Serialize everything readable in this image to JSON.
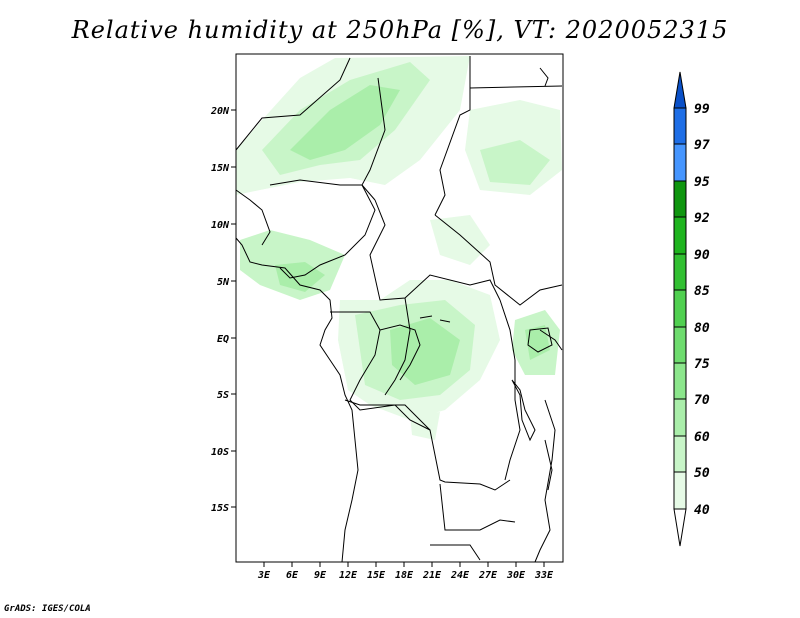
{
  "title": "Relative humidity at 250hPa [%], VT: 2020052315",
  "credit": "GrADS: IGES/COLA",
  "map": {
    "lat_labels": [
      "20N",
      "15N",
      "10N",
      "5N",
      "EQ",
      "5S",
      "10S",
      "15S"
    ],
    "lon_labels": [
      "3E",
      "6E",
      "9E",
      "12E",
      "15E",
      "18E",
      "21E",
      "24E",
      "27E",
      "30E",
      "33E"
    ]
  },
  "colorbar": {
    "labels": [
      "40",
      "50",
      "60",
      "70",
      "75",
      "80",
      "85",
      "90",
      "92",
      "95",
      "97",
      "99"
    ],
    "colors": [
      "#ffffff",
      "#e6fae6",
      "#c8f5c8",
      "#aaeeaa",
      "#8ce68c",
      "#6edc6e",
      "#50d050",
      "#32c032",
      "#1eb41e",
      "#0f960f",
      "#4696ff",
      "#1e6ee6",
      "#0a50c8"
    ]
  }
}
